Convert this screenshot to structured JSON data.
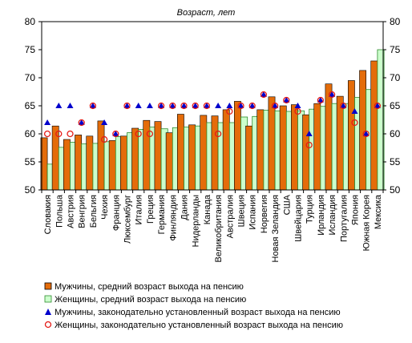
{
  "chart_data": {
    "type": "bar",
    "title": "Возраст, лет",
    "ylim": [
      50,
      80
    ],
    "yticks": [
      50,
      55,
      60,
      65,
      70,
      75,
      80
    ],
    "grid": false,
    "legend_position": "bottom",
    "categories": [
      "Словакия",
      "Польша",
      "Австрия",
      "Венгрия",
      "Бельгия",
      "Чехия",
      "Франция",
      "Люксембург",
      "Италия",
      "Греция",
      "Германия",
      "Финляндия",
      "Дания",
      "Нидерланды",
      "Канада",
      "Великобритания",
      "Австралия",
      "Швеция",
      "Испания",
      "Норвегия",
      "Новая Зеландия",
      "США",
      "Швейцария",
      "Турция",
      "Ирландия",
      "Исландия",
      "Португалия",
      "Япония",
      "Южная Корея",
      "Мексика"
    ],
    "series": [
      {
        "name": "Мужчины, средний возраст выхода на пенсию",
        "kind": "bar",
        "color": "#E46C0A",
        "values": [
          59.3,
          61.4,
          59.0,
          59.8,
          59.6,
          62.3,
          58.8,
          59.6,
          61.0,
          62.4,
          62.2,
          60.2,
          63.5,
          61.6,
          63.3,
          63.2,
          64.3,
          65.8,
          61.4,
          64.3,
          66.6,
          65.0,
          65.2,
          63.4,
          65.4,
          68.9,
          66.7,
          69.5,
          71.3,
          73.0
        ]
      },
      {
        "name": "Женщины, средний возраст выхода на пенсию",
        "kind": "bar",
        "color": "#CCFFCC",
        "values": [
          54.6,
          57.6,
          58.5,
          58.2,
          58.3,
          58.6,
          59.5,
          60.2,
          60.8,
          61.2,
          60.9,
          61.1,
          61.2,
          61.4,
          62.0,
          62.0,
          62.0,
          63.0,
          63.1,
          64.2,
          64.1,
          64.0,
          64.1,
          64.4,
          64.9,
          65.4,
          65.4,
          66.5,
          67.9,
          75.0
        ]
      },
      {
        "name": "Мужчины, законодательно установленный возраст выхода на пенсию",
        "kind": "marker",
        "marker": "triangle",
        "color": "#0000CC",
        "values": [
          62,
          65,
          65,
          62,
          65,
          62,
          60,
          65,
          65,
          65,
          65,
          65,
          65,
          65,
          65,
          65,
          65,
          65,
          65,
          67,
          65,
          66,
          65,
          60,
          66,
          67,
          65,
          64,
          60,
          65
        ]
      },
      {
        "name": "Женщины, законодательно установленный возраст выхода на пенсию",
        "kind": "marker",
        "marker": "circle",
        "color": "#E41B17",
        "values": [
          60,
          60,
          60,
          62,
          65,
          59,
          60,
          65,
          60,
          60,
          65,
          65,
          65,
          65,
          65,
          60,
          64,
          65,
          65,
          67,
          65,
          66,
          64,
          58,
          66,
          67,
          65,
          62,
          60,
          65
        ]
      }
    ]
  }
}
